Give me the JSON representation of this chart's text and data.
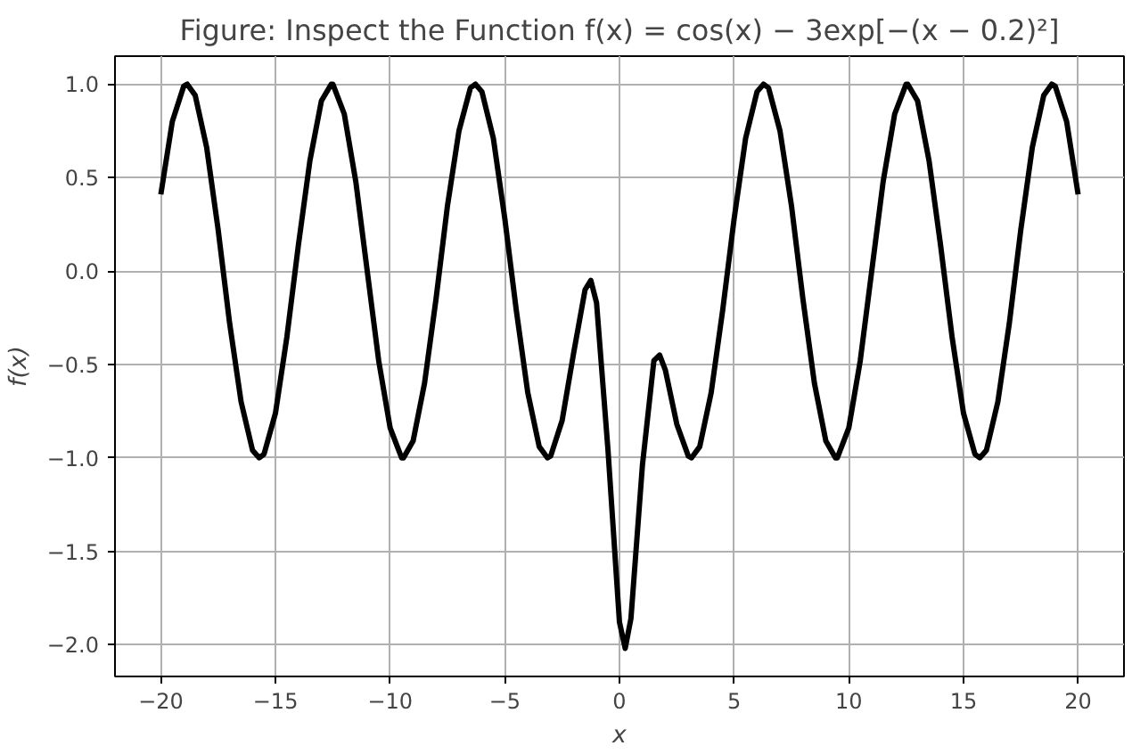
{
  "chart_data": {
    "type": "line",
    "title": "Figure: Inspect the Function f(x) = cos(x) − 3exp[−(x − 0.2)²]",
    "xlabel": "x",
    "ylabel": "f(x)",
    "xlim": [
      -22,
      22
    ],
    "ylim": [
      -2.17,
      1.15
    ],
    "xticks": [
      {
        "value": -20,
        "label": "−20"
      },
      {
        "value": -15,
        "label": "−15"
      },
      {
        "value": -10,
        "label": "−10"
      },
      {
        "value": -5,
        "label": "−5"
      },
      0,
      5,
      10,
      15,
      20
    ],
    "yticks": [
      {
        "value": -2,
        "label": "−2.0"
      },
      {
        "value": -1.5,
        "label": "−1.5"
      },
      {
        "value": -1,
        "label": "−1.0"
      },
      {
        "value": -0.5,
        "label": "−0.5"
      },
      {
        "value": 0,
        "label": "0.0"
      },
      {
        "value": 0.5,
        "label": "0.5"
      },
      {
        "value": 1,
        "label": "1.0"
      }
    ],
    "grid": true,
    "marker": "none",
    "line_style": "solid",
    "series": [
      {
        "color": "#000000",
        "x": [
          -20,
          -19.5,
          -19,
          -18.85,
          -18.5,
          -18,
          -17.5,
          -17,
          -16.5,
          -16,
          -15.71,
          -15.5,
          -15,
          -14.5,
          -14,
          -13.5,
          -13,
          -12.57,
          -12.5,
          -12,
          -11.5,
          -11,
          -10.5,
          -10,
          -9.5,
          -9.42,
          -9,
          -8.5,
          -8,
          -7.5,
          -7,
          -6.5,
          -6.28,
          -6,
          -5.5,
          -5,
          -4.5,
          -4,
          -3.5,
          -3.14,
          -3,
          -2.5,
          -2,
          -1.5,
          -1.25,
          -1,
          -0.5,
          0,
          0.25,
          0.5,
          1,
          1.5,
          1.75,
          2,
          2.5,
          3,
          3.14,
          3.5,
          4,
          4.5,
          5,
          5.5,
          6,
          6.28,
          6.5,
          7,
          7.5,
          8,
          8.5,
          9,
          9.42,
          9.5,
          10,
          10.5,
          11,
          11.5,
          12,
          12.5,
          12.57,
          13,
          13.5,
          14,
          14.5,
          15,
          15.5,
          15.71,
          16,
          16.5,
          17,
          17.5,
          18,
          18.5,
          18.85,
          19,
          19.5,
          20
        ],
        "values": [
          0.41,
          0.8,
          0.99,
          1.0,
          0.94,
          0.66,
          0.22,
          -0.28,
          -0.7,
          -0.96,
          -1.0,
          -0.98,
          -0.76,
          -0.35,
          0.14,
          0.59,
          0.91,
          1.0,
          1.0,
          0.84,
          0.48,
          0.0,
          -0.48,
          -0.84,
          -1.0,
          -1.0,
          -0.91,
          -0.6,
          -0.15,
          0.35,
          0.75,
          0.98,
          1.0,
          0.96,
          0.71,
          0.28,
          -0.21,
          -0.65,
          -0.94,
          -1.0,
          -0.99,
          -0.8,
          -0.44,
          -0.1,
          -0.05,
          -0.17,
          -0.96,
          -1.88,
          -2.02,
          -1.86,
          -1.04,
          -0.48,
          -0.45,
          -0.53,
          -0.82,
          -0.99,
          -1.0,
          -0.94,
          -0.65,
          -0.21,
          0.28,
          0.71,
          0.96,
          1.0,
          0.98,
          0.75,
          0.35,
          -0.15,
          -0.6,
          -0.91,
          -1.0,
          -1.0,
          -0.84,
          -0.48,
          0.0,
          0.48,
          0.84,
          1.0,
          1.0,
          0.91,
          0.59,
          0.14,
          -0.35,
          -0.76,
          -0.98,
          -1.0,
          -0.96,
          -0.7,
          -0.28,
          0.22,
          0.66,
          0.94,
          1.0,
          0.99,
          0.8,
          0.41
        ]
      }
    ]
  }
}
